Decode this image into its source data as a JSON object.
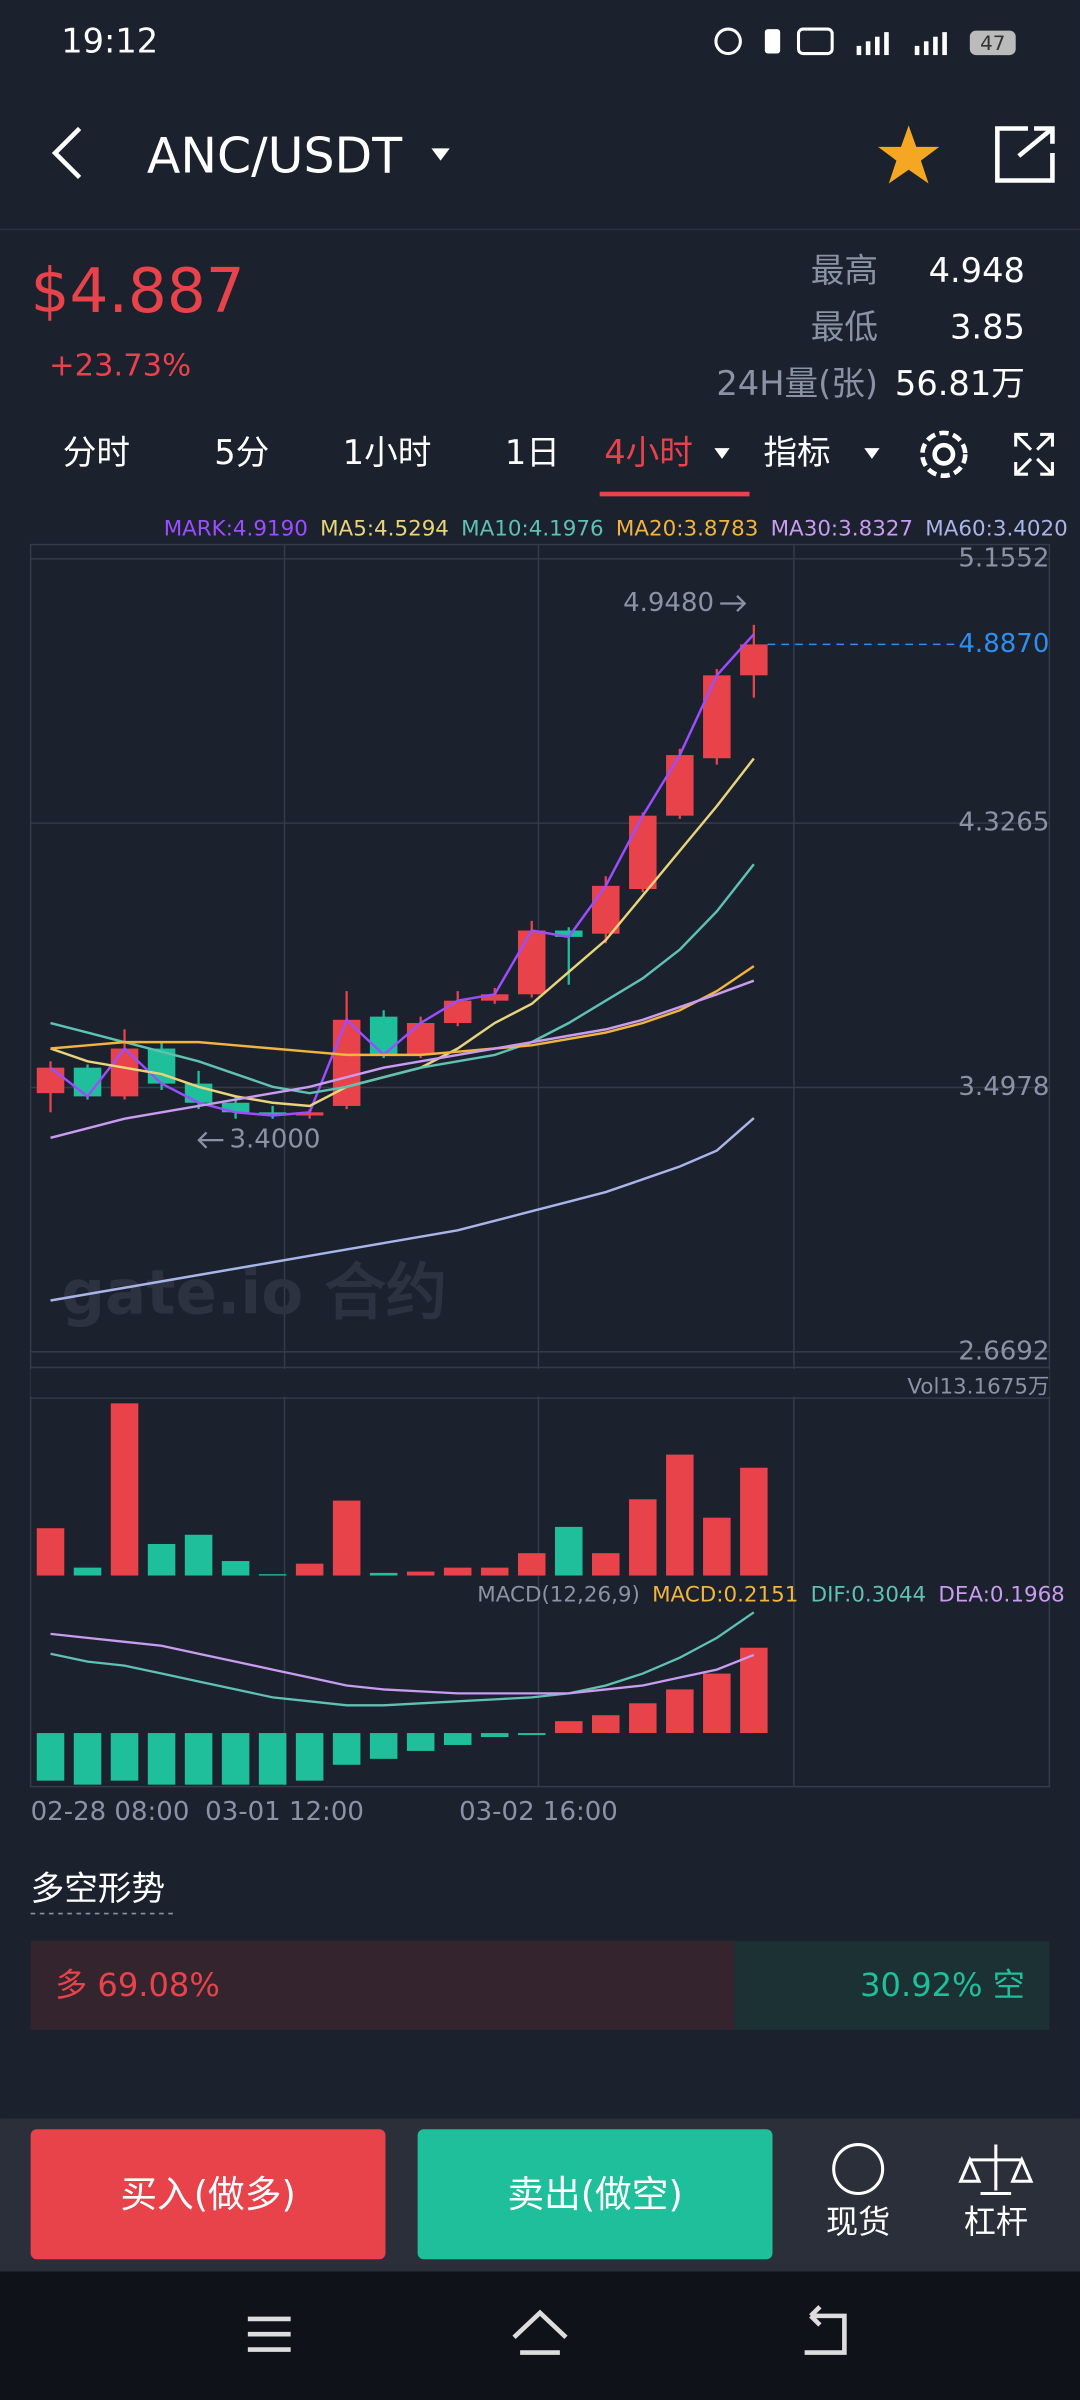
{
  "status_bar": {
    "time": "19:12",
    "battery": "47"
  },
  "header": {
    "pair": "ANC/USDT"
  },
  "ticker": {
    "price": "$4.887",
    "change": "+23.73%",
    "stats": [
      {
        "label": "最高",
        "value": "4.948"
      },
      {
        "label": "最低",
        "value": "3.85"
      },
      {
        "label": "24H量(张)",
        "value": "56.81万"
      }
    ]
  },
  "tabs": {
    "items": [
      "分时",
      "5分",
      "1小时",
      "1日",
      "4小时",
      "指标"
    ],
    "active": 4
  },
  "chart_data": [
    {
      "type": "candlestick",
      "watermark": "gate.io 合约",
      "up_color": "#e8424a",
      "down_color": "#1fbf9b",
      "open": [
        3.48,
        3.56,
        3.47,
        3.62,
        3.51,
        3.45,
        3.42,
        3.41,
        3.44,
        3.72,
        3.6,
        3.7,
        3.77,
        3.79,
        3.99,
        3.98,
        4.12,
        4.35,
        4.53,
        4.79
      ],
      "high": [
        3.58,
        3.57,
        3.68,
        3.64,
        3.55,
        3.47,
        3.44,
        3.43,
        3.8,
        3.74,
        3.72,
        3.8,
        3.81,
        4.02,
        4.0,
        4.16,
        4.36,
        4.56,
        4.81,
        4.948
      ],
      "low": [
        3.42,
        3.46,
        3.46,
        3.49,
        3.43,
        3.4,
        3.4,
        3.4,
        3.43,
        3.59,
        3.59,
        3.69,
        3.76,
        3.78,
        3.82,
        3.95,
        4.11,
        4.34,
        4.51,
        4.72
      ],
      "close": [
        3.56,
        3.47,
        3.62,
        3.51,
        3.45,
        3.42,
        3.41,
        3.42,
        3.71,
        3.6,
        3.7,
        3.77,
        3.79,
        3.99,
        3.97,
        4.13,
        4.35,
        4.54,
        4.79,
        4.887
      ],
      "series": [
        {
          "label": "MARK:4.9190",
          "color": "#9b4dff",
          "values": [
            3.56,
            3.47,
            3.62,
            3.51,
            3.45,
            3.42,
            3.41,
            3.42,
            3.71,
            3.6,
            3.7,
            3.77,
            3.79,
            3.99,
            3.97,
            4.13,
            4.35,
            4.54,
            4.79,
            4.919
          ]
        },
        {
          "label": "MA5:4.5294",
          "color": "#e8d47a",
          "values": [
            3.62,
            3.58,
            3.56,
            3.54,
            3.5,
            3.47,
            3.45,
            3.44,
            3.5,
            3.53,
            3.56,
            3.62,
            3.7,
            3.76,
            3.86,
            3.96,
            4.1,
            4.24,
            4.38,
            4.5294
          ]
        },
        {
          "label": "MA10:4.1976",
          "color": "#5fc2b0",
          "values": [
            3.7,
            3.67,
            3.64,
            3.61,
            3.58,
            3.54,
            3.5,
            3.48,
            3.5,
            3.53,
            3.56,
            3.58,
            3.6,
            3.64,
            3.7,
            3.77,
            3.84,
            3.93,
            4.05,
            4.1976
          ]
        },
        {
          "label": "MA20:3.8783",
          "color": "#f2b43c",
          "values": [
            3.62,
            3.63,
            3.64,
            3.64,
            3.64,
            3.63,
            3.62,
            3.61,
            3.6,
            3.6,
            3.6,
            3.61,
            3.62,
            3.63,
            3.65,
            3.67,
            3.7,
            3.74,
            3.8,
            3.8783
          ]
        },
        {
          "label": "MA30:3.8327",
          "color": "#c99cf0",
          "values": [
            3.34,
            3.37,
            3.4,
            3.42,
            3.44,
            3.46,
            3.48,
            3.5,
            3.53,
            3.56,
            3.58,
            3.6,
            3.62,
            3.64,
            3.66,
            3.68,
            3.71,
            3.75,
            3.79,
            3.8327
          ]
        },
        {
          "label": "MA60:3.4020",
          "color": "#a9b5e8",
          "values": [
            2.83,
            2.85,
            2.87,
            2.89,
            2.91,
            2.93,
            2.95,
            2.97,
            2.99,
            3.01,
            3.03,
            3.05,
            3.08,
            3.11,
            3.14,
            3.17,
            3.21,
            3.25,
            3.3,
            3.402
          ]
        }
      ],
      "ylim": [
        2.62,
        5.2
      ],
      "yticks": [
        5.1552,
        4.3265,
        3.4978,
        2.6692
      ],
      "grid": true,
      "high_label": {
        "value": 4.948,
        "label": "4.9480"
      },
      "low_label": {
        "value": 3.4,
        "label": "3.4000"
      },
      "last_price": {
        "value": 4.887,
        "label": "4.8870",
        "color": "#2e8ef0"
      },
      "xticks": [
        "02-28 08:00",
        "03-01 12:00",
        "03-02 16:00"
      ]
    },
    {
      "type": "bar",
      "title": "Vol13.1675万",
      "values": [
        3.6,
        0.6,
        13.1,
        2.4,
        3.1,
        1.1,
        0.1,
        0.9,
        5.7,
        0.2,
        0.3,
        0.6,
        0.6,
        1.7,
        3.7,
        1.7,
        5.8,
        9.2,
        4.4,
        8.2
      ],
      "ylim": [
        0,
        13.5
      ]
    },
    {
      "type": "macd",
      "title": "MACD(12,26,9)",
      "values": [
        -0.12,
        -0.13,
        -0.12,
        -0.13,
        -0.13,
        -0.13,
        -0.13,
        -0.12,
        -0.08,
        -0.065,
        -0.045,
        -0.03,
        -0.01,
        -0.005,
        0.03,
        0.045,
        0.075,
        0.11,
        0.15,
        0.2151
      ],
      "series": [
        {
          "label": "MACD:0.2151",
          "color": "#f2b43c"
        },
        {
          "label": "DIF:0.3044",
          "color": "#5fc2b0",
          "values": [
            0.2,
            0.18,
            0.17,
            0.15,
            0.13,
            0.11,
            0.09,
            0.08,
            0.07,
            0.07,
            0.075,
            0.08,
            0.085,
            0.09,
            0.1,
            0.12,
            0.15,
            0.19,
            0.24,
            0.3044
          ]
        },
        {
          "label": "DEA:0.1968",
          "color": "#c99cf0",
          "values": [
            0.25,
            0.24,
            0.23,
            0.22,
            0.2,
            0.18,
            0.16,
            0.14,
            0.12,
            0.11,
            0.105,
            0.1,
            0.1,
            0.1,
            0.1,
            0.11,
            0.12,
            0.14,
            0.16,
            0.1968
          ]
        }
      ],
      "ylim": [
        -0.135,
        0.32
      ]
    }
  ],
  "sentiment": {
    "title": "多空形势",
    "long": {
      "value": 69.08,
      "label": "多 69.08%"
    },
    "short": {
      "value": 30.92,
      "label": "30.92% 空"
    }
  },
  "actions": {
    "buy": "买入(做多)",
    "sell": "卖出(做空)",
    "spot": "现货",
    "margin": "杠杆"
  }
}
